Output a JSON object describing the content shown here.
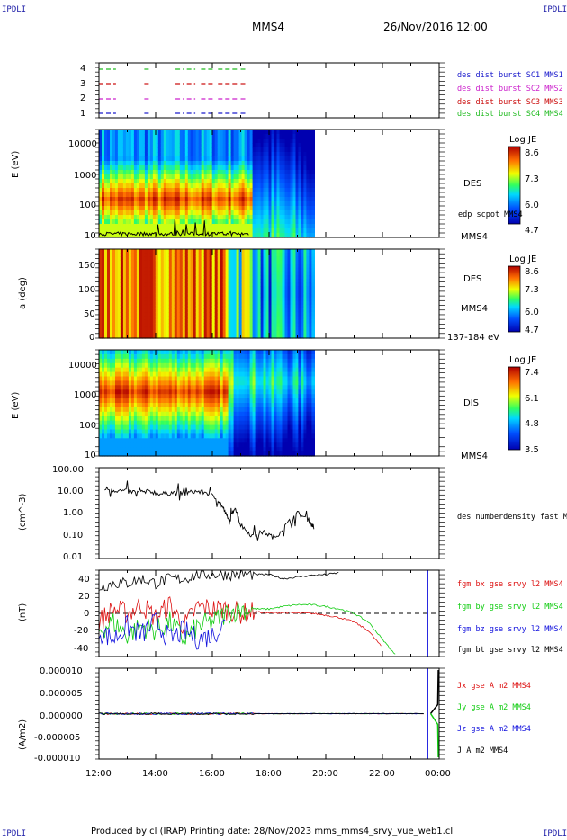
{
  "corner_label": "IPDLI",
  "header": {
    "spacecraft": "MMS4",
    "datetime": "26/Nov/2016 12:00"
  },
  "footer": "Produced by cl (IRAP)   Printing date: 28/Nov/2023   mms_mms4_srvy_vue_web1.cl",
  "colors": {
    "mms1": "#1a1acc",
    "mms2": "#cc22cc",
    "mms3": "#cc1111",
    "mms4": "#22bb22",
    "bx": "#dd1111",
    "by": "#11cc11",
    "bz": "#1111dd",
    "bt": "#000000"
  },
  "chart_data": [
    {
      "type": "line",
      "panel": "burst-availability",
      "y_ticks": [
        "4",
        "3",
        "2",
        "1"
      ],
      "series": [
        {
          "name": "des dist burst SC1 MMS1",
          "y": 1,
          "intervals_h": [
            [
              12.0,
              12.6
            ],
            [
              13.6,
              13.8
            ],
            [
              14.7,
              15.0
            ],
            [
              15.1,
              15.4
            ],
            [
              15.6,
              16.1
            ],
            [
              16.2,
              16.9
            ],
            [
              17.0,
              17.2
            ]
          ]
        },
        {
          "name": "des dist burst SC2 MMS2",
          "y": 2,
          "intervals_h": [
            [
              12.0,
              12.6
            ],
            [
              13.6,
              13.8
            ],
            [
              14.7,
              15.0
            ],
            [
              15.1,
              15.4
            ],
            [
              15.6,
              16.1
            ],
            [
              16.2,
              16.9
            ],
            [
              17.0,
              17.2
            ]
          ]
        },
        {
          "name": "des dist burst SC3 MMS3",
          "y": 3,
          "intervals_h": [
            [
              12.0,
              12.6
            ],
            [
              13.6,
              13.8
            ],
            [
              14.7,
              15.0
            ],
            [
              15.1,
              15.4
            ],
            [
              15.6,
              16.1
            ],
            [
              16.2,
              16.9
            ],
            [
              17.0,
              17.2
            ]
          ]
        },
        {
          "name": "des dist burst SC4 MMS4",
          "y": 4,
          "intervals_h": [
            [
              12.0,
              12.6
            ],
            [
              13.6,
              13.8
            ],
            [
              14.7,
              15.0
            ],
            [
              15.1,
              15.4
            ],
            [
              15.6,
              16.1
            ],
            [
              16.2,
              16.9
            ],
            [
              17.0,
              17.2
            ]
          ]
        }
      ]
    },
    {
      "type": "heatmap",
      "panel": "des-energy",
      "ylabel": "E (eV)",
      "y_ticks": [
        "10000",
        "1000",
        "100",
        "10"
      ],
      "instrument": "DES",
      "overlay_label": "edp scpot MMS4",
      "sc_label": "MMS4",
      "colorbar": {
        "title": "Log JE",
        "ticks": [
          "8.6",
          "7.3",
          "6.0",
          "4.7"
        ]
      },
      "data_end_h": 19.6
    },
    {
      "type": "heatmap",
      "panel": "des-pitch",
      "ylabel": "a (deg)",
      "y_ticks": [
        "150",
        "100",
        "50",
        "0"
      ],
      "instrument": "DES",
      "sc_label": "MMS4",
      "energy_range": "137-184 eV",
      "colorbar": {
        "title": "Log JE",
        "ticks": [
          "8.6",
          "7.3",
          "6.0",
          "4.7"
        ]
      },
      "data_end_h": 19.6
    },
    {
      "type": "heatmap",
      "panel": "dis-energy",
      "ylabel": "E (eV)",
      "y_ticks": [
        "10000",
        "1000",
        "100",
        "10"
      ],
      "instrument": "DIS",
      "sc_label": "MMS4",
      "colorbar": {
        "title": "Log JE",
        "ticks": [
          "7.4",
          "6.1",
          "4.8",
          "3.5"
        ]
      },
      "data_end_h": 19.6
    },
    {
      "type": "line",
      "panel": "density",
      "ylabel": "(cm^-3)",
      "yscale": "log",
      "ylim": [
        0.01,
        100
      ],
      "y_ticks": [
        "100.00",
        "10.00",
        "1.00",
        "0.10",
        "0.01"
      ],
      "series": [
        {
          "name": "des numberdensity fast M",
          "color": "#000000",
          "x_h": [
            12.2,
            12.6,
            13.0,
            13.4,
            13.8,
            14.2,
            14.6,
            15.0,
            15.4,
            15.8,
            16.2,
            16.4,
            16.6,
            16.8,
            17.0,
            17.4,
            17.8,
            18.2,
            18.6,
            19.0,
            19.4,
            19.6
          ],
          "y": [
            12,
            10,
            9,
            8,
            9,
            7,
            8,
            7,
            9,
            8,
            4,
            1.5,
            0.4,
            2,
            0.3,
            0.1,
            0.15,
            0.08,
            0.3,
            1.0,
            0.5,
            0.2
          ]
        }
      ]
    },
    {
      "type": "line",
      "panel": "magnetic-field",
      "ylabel": "(nT)",
      "ylim": [
        -50,
        50
      ],
      "y_ticks": [
        "40",
        "20",
        "0",
        "-20",
        "-40"
      ],
      "x_h": [
        12.0,
        12.5,
        13.0,
        13.5,
        14.0,
        14.5,
        15.0,
        15.5,
        16.0,
        16.5,
        17.0,
        17.5,
        18.0,
        18.5,
        19.0,
        19.5,
        20.0,
        20.5,
        21.0,
        21.5,
        22.0,
        22.5
      ],
      "series": [
        {
          "name": "fgm bx gse srvy l2 MMS4",
          "color": "#dd1111",
          "y": [
            -10,
            5,
            0,
            10,
            -5,
            10,
            -15,
            8,
            5,
            5,
            0,
            2,
            0,
            1,
            0,
            0,
            -2,
            -5,
            -10,
            -20,
            -40,
            null
          ]
        },
        {
          "name": "fgm by gse srvy l2 MMS4",
          "color": "#11cc11",
          "y": [
            -20,
            -10,
            -25,
            -15,
            -20,
            -10,
            -30,
            -15,
            -10,
            0,
            5,
            5,
            5,
            8,
            10,
            10,
            8,
            5,
            0,
            -10,
            -30,
            -50
          ]
        },
        {
          "name": "fgm bz gse srvy l2 MMS4",
          "color": "#1111dd",
          "y": [
            -20,
            -30,
            -15,
            -25,
            -10,
            -30,
            -20,
            -30,
            -25,
            -10,
            null,
            null,
            null,
            null,
            null,
            null,
            null,
            null,
            null,
            null,
            null,
            null
          ]
        },
        {
          "name": "fgm bt gse srvy l2 MMS4",
          "color": "#000000",
          "y": [
            30,
            35,
            35,
            40,
            35,
            40,
            40,
            45,
            45,
            45,
            45,
            45,
            45,
            40,
            42,
            44,
            45,
            47,
            null,
            null,
            null,
            null
          ]
        }
      ]
    },
    {
      "type": "line",
      "panel": "current-density",
      "ylabel": "(A/m2)",
      "ylim": [
        -1e-05,
        1e-05
      ],
      "y_ticks": [
        "0.000010",
        "0.000005",
        "0.000000",
        "-0.000005",
        "-0.000010"
      ],
      "series": [
        {
          "name": "Jx gse A m2 MMS4",
          "color": "#dd1111"
        },
        {
          "name": "Jy gse A m2 MMS4",
          "color": "#11cc11"
        },
        {
          "name": "Jz gse A m2 MMS4",
          "color": "#1111dd"
        },
        {
          "name": "J A m2 MMS4",
          "color": "#000000"
        }
      ]
    }
  ],
  "x_axis": {
    "range_h": [
      12,
      24
    ],
    "tick_labels": [
      "12:00",
      "14:00",
      "16:00",
      "18:00",
      "20:00",
      "22:00",
      "00:00"
    ]
  }
}
